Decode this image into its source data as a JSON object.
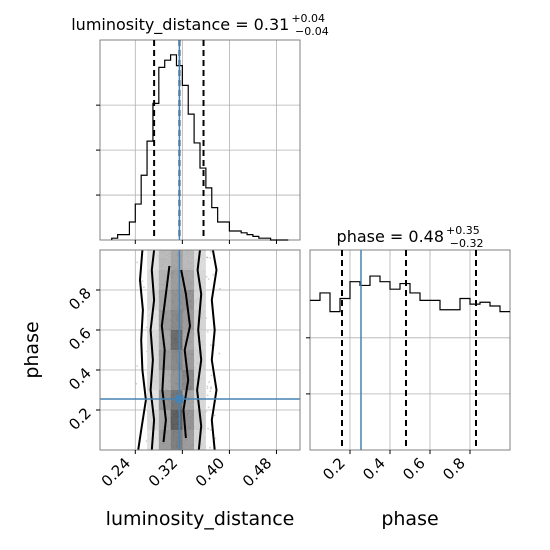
{
  "chart_data": {
    "type": "corner",
    "parameters": [
      "luminosity_distance",
      "phase"
    ],
    "truths": {
      "luminosity_distance": 0.315,
      "phase": 0.255
    },
    "colors": {
      "truth": "#4682b4",
      "hist": "#000000",
      "grid": "#b0b0b0"
    },
    "titles": {
      "luminosity_distance": {
        "prefix": "luminosity_distance = 0.31",
        "sup": "+0.04",
        "sub": "−0.04"
      },
      "phase": {
        "prefix": "phase = 0.48",
        "sup": "+0.35",
        "sub": "−0.32"
      }
    },
    "luminosity_distance": {
      "range": [
        0.18,
        0.52
      ],
      "ticks": [
        0.24,
        0.32,
        0.4,
        0.48
      ],
      "tick_labels": [
        "0.24",
        "0.32",
        "0.40",
        "0.48"
      ],
      "quantiles": [
        0.272,
        0.315,
        0.356
      ],
      "bin_edges": [
        0.2,
        0.21,
        0.22,
        0.23,
        0.24,
        0.25,
        0.26,
        0.27,
        0.28,
        0.29,
        0.3,
        0.31,
        0.32,
        0.33,
        0.34,
        0.35,
        0.36,
        0.37,
        0.38,
        0.39,
        0.4,
        0.41,
        0.42,
        0.43,
        0.44,
        0.45,
        0.46,
        0.47,
        0.48,
        0.49,
        0.5
      ],
      "counts": [
        1,
        3,
        3,
        10,
        20,
        36,
        55,
        76,
        96,
        100,
        103,
        97,
        86,
        70,
        54,
        40,
        29,
        18,
        10,
        10,
        5,
        5,
        4,
        3,
        2,
        1,
        1,
        0,
        0,
        0
      ]
    },
    "phase": {
      "range": [
        0.0,
        1.0
      ],
      "ticks": [
        0.2,
        0.4,
        0.6,
        0.8
      ],
      "tick_labels": [
        "0.2",
        "0.4",
        "0.6",
        "0.8"
      ],
      "quantiles": [
        0.16,
        0.48,
        0.83
      ],
      "bin_edges": [
        0,
        0.05,
        0.1,
        0.15,
        0.2,
        0.25,
        0.3,
        0.35,
        0.4,
        0.45,
        0.5,
        0.55,
        0.6,
        0.65,
        0.7,
        0.75,
        0.8,
        0.85,
        0.9,
        0.95,
        1.0
      ],
      "counts": [
        80,
        84,
        74,
        81,
        90,
        88,
        93,
        90,
        86,
        89,
        84,
        80,
        80,
        75,
        75,
        81,
        78,
        79,
        77,
        74
      ]
    },
    "contours": [
      {
        "name": "outer-left",
        "points": [
          [
            0.245,
            0.0
          ],
          [
            0.25,
            0.1
          ],
          [
            0.258,
            0.25
          ],
          [
            0.252,
            0.4
          ],
          [
            0.25,
            0.55
          ],
          [
            0.253,
            0.7
          ],
          [
            0.248,
            0.85
          ],
          [
            0.252,
            1.0
          ]
        ]
      },
      {
        "name": "outer-right",
        "points": [
          [
            0.375,
            0.0
          ],
          [
            0.37,
            0.15
          ],
          [
            0.378,
            0.3
          ],
          [
            0.37,
            0.45
          ],
          [
            0.375,
            0.6
          ],
          [
            0.37,
            0.75
          ],
          [
            0.378,
            0.9
          ],
          [
            0.372,
            1.0
          ]
        ]
      },
      {
        "name": "mid-left",
        "points": [
          [
            0.268,
            0.0
          ],
          [
            0.272,
            0.15
          ],
          [
            0.266,
            0.3
          ],
          [
            0.27,
            0.45
          ],
          [
            0.266,
            0.6
          ],
          [
            0.272,
            0.75
          ],
          [
            0.268,
            0.9
          ],
          [
            0.272,
            1.0
          ]
        ]
      },
      {
        "name": "mid-right",
        "points": [
          [
            0.348,
            0.0
          ],
          [
            0.352,
            0.12
          ],
          [
            0.345,
            0.3
          ],
          [
            0.352,
            0.45
          ],
          [
            0.347,
            0.6
          ],
          [
            0.352,
            0.78
          ],
          [
            0.346,
            0.9
          ],
          [
            0.35,
            1.0
          ]
        ]
      },
      {
        "name": "inner-left",
        "points": [
          [
            0.288,
            0.04
          ],
          [
            0.292,
            0.15
          ],
          [
            0.286,
            0.3
          ],
          [
            0.29,
            0.5
          ],
          [
            0.285,
            0.62
          ],
          [
            0.292,
            0.78
          ],
          [
            0.298,
            0.92
          ]
        ]
      },
      {
        "name": "inner-right",
        "points": [
          [
            0.326,
            0.06
          ],
          [
            0.322,
            0.2
          ],
          [
            0.33,
            0.35
          ],
          [
            0.324,
            0.5
          ],
          [
            0.333,
            0.62
          ],
          [
            0.326,
            0.78
          ],
          [
            0.318,
            0.9
          ]
        ]
      }
    ],
    "density_columns": [
      {
        "x0": 0.26,
        "x1": 0.28,
        "levels": [
          0.15,
          0.2,
          0.15,
          0.2,
          0.18,
          0.2,
          0.15,
          0.2,
          0.18,
          0.15
        ]
      },
      {
        "x0": 0.28,
        "x1": 0.3,
        "levels": [
          0.5,
          0.45,
          0.55,
          0.4,
          0.5,
          0.45,
          0.5,
          0.45,
          0.4,
          0.35
        ]
      },
      {
        "x0": 0.3,
        "x1": 0.32,
        "levels": [
          0.65,
          0.8,
          0.7,
          0.55,
          0.6,
          0.75,
          0.6,
          0.55,
          0.5,
          0.45
        ]
      },
      {
        "x0": 0.32,
        "x1": 0.34,
        "levels": [
          0.5,
          0.55,
          0.45,
          0.6,
          0.5,
          0.45,
          0.5,
          0.55,
          0.45,
          0.35
        ]
      },
      {
        "x0": 0.34,
        "x1": 0.36,
        "levels": [
          0.2,
          0.25,
          0.2,
          0.2,
          0.22,
          0.2,
          0.22,
          0.2,
          0.2,
          0.18
        ]
      }
    ]
  }
}
